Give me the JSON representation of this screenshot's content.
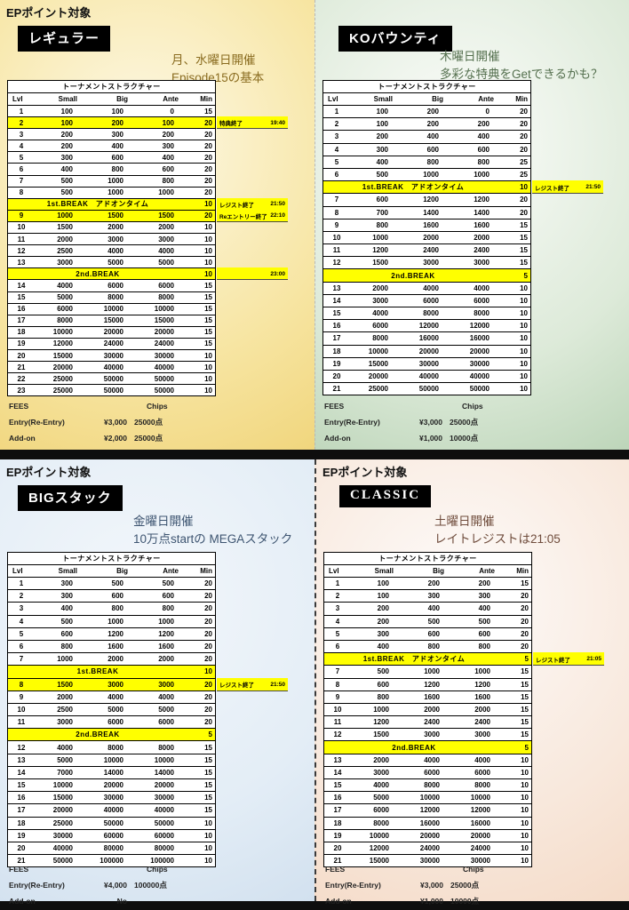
{
  "theme": {
    "highlight": "#ffff00",
    "badge_bg": "#000000",
    "badge_text": "#ffffff",
    "divider": "#0e0e0e"
  },
  "quadrants": [
    {
      "id": "regular",
      "ep_label": "EPポイント対象",
      "badge": "レギュラー",
      "headline1": "月、水曜日開催",
      "headline2": "Episode15の基本",
      "table_title": "トーナメントストラクチャー",
      "columns": [
        "Lvl",
        "Small",
        "Big",
        "Ante",
        "Min"
      ],
      "colors": {
        "bg_inner": "#fdf9e8",
        "bg_mid": "#f7e5a2",
        "bg_outer": "#eccb63",
        "accent": "#8a6c20"
      },
      "rows": [
        {
          "lvl": "1",
          "small": "100",
          "big": "100",
          "ante": "0",
          "min": "15"
        },
        {
          "lvl": "2",
          "small": "100",
          "big": "200",
          "ante": "100",
          "min": "20",
          "hl": true,
          "note": "特典終了",
          "time": "19:40"
        },
        {
          "lvl": "3",
          "small": "200",
          "big": "300",
          "ante": "200",
          "min": "20"
        },
        {
          "lvl": "4",
          "small": "200",
          "big": "400",
          "ante": "300",
          "min": "20"
        },
        {
          "lvl": "5",
          "small": "300",
          "big": "600",
          "ante": "400",
          "min": "20"
        },
        {
          "lvl": "6",
          "small": "400",
          "big": "800",
          "ante": "600",
          "min": "20"
        },
        {
          "lvl": "7",
          "small": "500",
          "big": "1000",
          "ante": "800",
          "min": "20"
        },
        {
          "lvl": "8",
          "small": "500",
          "big": "1000",
          "ante": "1000",
          "min": "20"
        },
        {
          "break": "1st.BREAK　アドオンタイム",
          "min": "10",
          "note": "レジスト終了",
          "time": "21:50"
        },
        {
          "lvl": "9",
          "small": "1000",
          "big": "1500",
          "ante": "1500",
          "min": "20",
          "hl": true,
          "note": "Reエントリー終了",
          "time": "22:10"
        },
        {
          "lvl": "10",
          "small": "1500",
          "big": "2000",
          "ante": "2000",
          "min": "10"
        },
        {
          "lvl": "11",
          "small": "2000",
          "big": "3000",
          "ante": "3000",
          "min": "10"
        },
        {
          "lvl": "12",
          "small": "2500",
          "big": "4000",
          "ante": "4000",
          "min": "10"
        },
        {
          "lvl": "13",
          "small": "3000",
          "big": "5000",
          "ante": "5000",
          "min": "10"
        },
        {
          "break": "2nd.BREAK",
          "min": "10",
          "note": "",
          "time": "23:00"
        },
        {
          "lvl": "14",
          "small": "4000",
          "big": "6000",
          "ante": "6000",
          "min": "15"
        },
        {
          "lvl": "15",
          "small": "5000",
          "big": "8000",
          "ante": "8000",
          "min": "15"
        },
        {
          "lvl": "16",
          "small": "6000",
          "big": "10000",
          "ante": "10000",
          "min": "15"
        },
        {
          "lvl": "17",
          "small": "8000",
          "big": "15000",
          "ante": "15000",
          "min": "15"
        },
        {
          "lvl": "18",
          "small": "10000",
          "big": "20000",
          "ante": "20000",
          "min": "15"
        },
        {
          "lvl": "19",
          "small": "12000",
          "big": "24000",
          "ante": "24000",
          "min": "15"
        },
        {
          "lvl": "20",
          "small": "15000",
          "big": "30000",
          "ante": "30000",
          "min": "10"
        },
        {
          "lvl": "21",
          "small": "20000",
          "big": "40000",
          "ante": "40000",
          "min": "10"
        },
        {
          "lvl": "22",
          "small": "25000",
          "big": "50000",
          "ante": "50000",
          "min": "10"
        },
        {
          "lvl": "23",
          "small": "25000",
          "big": "50000",
          "ante": "50000",
          "min": "10"
        }
      ],
      "fees": {
        "title": "FEES",
        "chips_label": "Chips",
        "entry_label": "Entry(Re-Entry)",
        "entry_fee": "¥3,000",
        "entry_chips": "25000点",
        "addon_label": "Add-on",
        "addon_fee": "¥2,000",
        "addon_chips": "25000点"
      }
    },
    {
      "id": "ko-bounty",
      "badge": "KOバウンティ",
      "headline1": "木曜日開催",
      "headline2": "多彩な特典をGetできるかも？",
      "table_title": "トーナメントストラクチャー",
      "columns": [
        "Lvl",
        "Small",
        "Big",
        "Ante",
        "Min"
      ],
      "colors": {
        "bg_inner": "#fcfdfb",
        "bg_mid": "#ddead9",
        "bg_outer": "#a6c7a3",
        "accent": "#55704f"
      },
      "rows": [
        {
          "lvl": "1",
          "small": "100",
          "big": "200",
          "ante": "0",
          "min": "20"
        },
        {
          "lvl": "2",
          "small": "100",
          "big": "200",
          "ante": "200",
          "min": "20"
        },
        {
          "lvl": "3",
          "small": "200",
          "big": "400",
          "ante": "400",
          "min": "20"
        },
        {
          "lvl": "4",
          "small": "300",
          "big": "600",
          "ante": "600",
          "min": "20"
        },
        {
          "lvl": "5",
          "small": "400",
          "big": "800",
          "ante": "800",
          "min": "25"
        },
        {
          "lvl": "6",
          "small": "500",
          "big": "1000",
          "ante": "1000",
          "min": "25"
        },
        {
          "break": "1st.BREAK　アドオンタイム",
          "min": "10",
          "note": "レジスト終了",
          "time": "21:50"
        },
        {
          "lvl": "7",
          "small": "600",
          "big": "1200",
          "ante": "1200",
          "min": "20"
        },
        {
          "lvl": "8",
          "small": "700",
          "big": "1400",
          "ante": "1400",
          "min": "20"
        },
        {
          "lvl": "9",
          "small": "800",
          "big": "1600",
          "ante": "1600",
          "min": "15"
        },
        {
          "lvl": "10",
          "small": "1000",
          "big": "2000",
          "ante": "2000",
          "min": "15"
        },
        {
          "lvl": "11",
          "small": "1200",
          "big": "2400",
          "ante": "2400",
          "min": "15"
        },
        {
          "lvl": "12",
          "small": "1500",
          "big": "3000",
          "ante": "3000",
          "min": "15"
        },
        {
          "break": "2nd.BREAK",
          "min": "5"
        },
        {
          "lvl": "13",
          "small": "2000",
          "big": "4000",
          "ante": "4000",
          "min": "10"
        },
        {
          "lvl": "14",
          "small": "3000",
          "big": "6000",
          "ante": "6000",
          "min": "10"
        },
        {
          "lvl": "15",
          "small": "4000",
          "big": "8000",
          "ante": "8000",
          "min": "10"
        },
        {
          "lvl": "16",
          "small": "6000",
          "big": "12000",
          "ante": "12000",
          "min": "10"
        },
        {
          "lvl": "17",
          "small": "8000",
          "big": "16000",
          "ante": "16000",
          "min": "10"
        },
        {
          "lvl": "18",
          "small": "10000",
          "big": "20000",
          "ante": "20000",
          "min": "10"
        },
        {
          "lvl": "19",
          "small": "15000",
          "big": "30000",
          "ante": "30000",
          "min": "10"
        },
        {
          "lvl": "20",
          "small": "20000",
          "big": "40000",
          "ante": "40000",
          "min": "10"
        },
        {
          "lvl": "21",
          "small": "25000",
          "big": "50000",
          "ante": "50000",
          "min": "10"
        }
      ],
      "fees": {
        "title": "FEES",
        "chips_label": "Chips",
        "entry_label": "Entry(Re-Entry)",
        "entry_fee": "¥3,000",
        "entry_chips": "25000点",
        "addon_label": "Add-on",
        "addon_fee": "¥1,000",
        "addon_chips": "10000点"
      }
    },
    {
      "id": "big-stack",
      "ep_label": "EPポイント対象",
      "badge": "BIGスタック",
      "headline1": "金曜日開催",
      "headline2": "10万点startの MEGAスタック",
      "table_title": "トーナメントストラクチャー",
      "columns": [
        "Lvl",
        "Small",
        "Big",
        "Ante",
        "Min"
      ],
      "colors": {
        "bg_inner": "#f3f7fb",
        "bg_mid": "#e3edf6",
        "bg_outer": "#c6d8ea",
        "accent": "#3e5571"
      },
      "rows": [
        {
          "lvl": "1",
          "small": "300",
          "big": "500",
          "ante": "500",
          "min": "20"
        },
        {
          "lvl": "2",
          "small": "300",
          "big": "600",
          "ante": "600",
          "min": "20"
        },
        {
          "lvl": "3",
          "small": "400",
          "big": "800",
          "ante": "800",
          "min": "20"
        },
        {
          "lvl": "4",
          "small": "500",
          "big": "1000",
          "ante": "1000",
          "min": "20"
        },
        {
          "lvl": "5",
          "small": "600",
          "big": "1200",
          "ante": "1200",
          "min": "20"
        },
        {
          "lvl": "6",
          "small": "800",
          "big": "1600",
          "ante": "1600",
          "min": "20"
        },
        {
          "lvl": "7",
          "small": "1000",
          "big": "2000",
          "ante": "2000",
          "min": "20"
        },
        {
          "break": "1st.BREAK",
          "min": "10"
        },
        {
          "lvl": "8",
          "small": "1500",
          "big": "3000",
          "ante": "3000",
          "min": "20",
          "hl": true,
          "note": "レジスト終了",
          "time": "21:50"
        },
        {
          "lvl": "9",
          "small": "2000",
          "big": "4000",
          "ante": "4000",
          "min": "20"
        },
        {
          "lvl": "10",
          "small": "2500",
          "big": "5000",
          "ante": "5000",
          "min": "20"
        },
        {
          "lvl": "11",
          "small": "3000",
          "big": "6000",
          "ante": "6000",
          "min": "20"
        },
        {
          "break": "2nd.BREAK",
          "min": "5"
        },
        {
          "lvl": "12",
          "small": "4000",
          "big": "8000",
          "ante": "8000",
          "min": "15"
        },
        {
          "lvl": "13",
          "small": "5000",
          "big": "10000",
          "ante": "10000",
          "min": "15"
        },
        {
          "lvl": "14",
          "small": "7000",
          "big": "14000",
          "ante": "14000",
          "min": "15"
        },
        {
          "lvl": "15",
          "small": "10000",
          "big": "20000",
          "ante": "20000",
          "min": "15"
        },
        {
          "lvl": "16",
          "small": "15000",
          "big": "30000",
          "ante": "30000",
          "min": "15"
        },
        {
          "lvl": "17",
          "small": "20000",
          "big": "40000",
          "ante": "40000",
          "min": "15"
        },
        {
          "lvl": "18",
          "small": "25000",
          "big": "50000",
          "ante": "50000",
          "min": "10"
        },
        {
          "lvl": "19",
          "small": "30000",
          "big": "60000",
          "ante": "60000",
          "min": "10"
        },
        {
          "lvl": "20",
          "small": "40000",
          "big": "80000",
          "ante": "80000",
          "min": "10"
        },
        {
          "lvl": "21",
          "small": "50000",
          "big": "100000",
          "ante": "100000",
          "min": "10"
        }
      ],
      "fees": {
        "title": "FEES",
        "chips_label": "Chips",
        "entry_label": "Entry(Re-Entry)",
        "entry_fee": "¥4,000",
        "entry_chips": "100000点",
        "addon_label": "Add-on",
        "addon_fee": "No",
        "addon_chips": ""
      }
    },
    {
      "id": "classic",
      "ep_label": "EPポイント対象",
      "badge": "CLASSIC",
      "headline1": "土曜日開催",
      "headline2": "レイトレジストは21:05",
      "table_title": "トーナメントストラクチャー",
      "columns": [
        "Lvl",
        "Small",
        "Big",
        "Ante",
        "Min"
      ],
      "colors": {
        "bg_inner": "#fdfbfa",
        "bg_mid": "#f8e8dc",
        "bg_outer": "#f2d2ba",
        "accent": "#6f4c3c"
      },
      "rows": [
        {
          "lvl": "1",
          "small": "100",
          "big": "200",
          "ante": "200",
          "min": "15"
        },
        {
          "lvl": "2",
          "small": "100",
          "big": "300",
          "ante": "300",
          "min": "20"
        },
        {
          "lvl": "3",
          "small": "200",
          "big": "400",
          "ante": "400",
          "min": "20"
        },
        {
          "lvl": "4",
          "small": "200",
          "big": "500",
          "ante": "500",
          "min": "20"
        },
        {
          "lvl": "5",
          "small": "300",
          "big": "600",
          "ante": "600",
          "min": "20"
        },
        {
          "lvl": "6",
          "small": "400",
          "big": "800",
          "ante": "800",
          "min": "20"
        },
        {
          "break": "1st.BREAK　アドオンタイム",
          "min": "5",
          "note": "レジスト終了",
          "time": "21:05"
        },
        {
          "lvl": "7",
          "small": "500",
          "big": "1000",
          "ante": "1000",
          "min": "15"
        },
        {
          "lvl": "8",
          "small": "600",
          "big": "1200",
          "ante": "1200",
          "min": "15"
        },
        {
          "lvl": "9",
          "small": "800",
          "big": "1600",
          "ante": "1600",
          "min": "15"
        },
        {
          "lvl": "10",
          "small": "1000",
          "big": "2000",
          "ante": "2000",
          "min": "15"
        },
        {
          "lvl": "11",
          "small": "1200",
          "big": "2400",
          "ante": "2400",
          "min": "15"
        },
        {
          "lvl": "12",
          "small": "1500",
          "big": "3000",
          "ante": "3000",
          "min": "15"
        },
        {
          "break": "2nd.BREAK",
          "min": "5"
        },
        {
          "lvl": "13",
          "small": "2000",
          "big": "4000",
          "ante": "4000",
          "min": "10"
        },
        {
          "lvl": "14",
          "small": "3000",
          "big": "6000",
          "ante": "6000",
          "min": "10"
        },
        {
          "lvl": "15",
          "small": "4000",
          "big": "8000",
          "ante": "8000",
          "min": "10"
        },
        {
          "lvl": "16",
          "small": "5000",
          "big": "10000",
          "ante": "10000",
          "min": "10"
        },
        {
          "lvl": "17",
          "small": "6000",
          "big": "12000",
          "ante": "12000",
          "min": "10"
        },
        {
          "lvl": "18",
          "small": "8000",
          "big": "16000",
          "ante": "16000",
          "min": "10"
        },
        {
          "lvl": "19",
          "small": "10000",
          "big": "20000",
          "ante": "20000",
          "min": "10"
        },
        {
          "lvl": "20",
          "small": "12000",
          "big": "24000",
          "ante": "24000",
          "min": "10"
        },
        {
          "lvl": "21",
          "small": "15000",
          "big": "30000",
          "ante": "30000",
          "min": "10"
        }
      ],
      "fees": {
        "title": "FEES",
        "chips_label": "Chips",
        "entry_label": "Entry(Re-Entry)",
        "entry_fee": "¥3,000",
        "entry_chips": "25000点",
        "addon_label": "Add-on",
        "addon_fee": "¥1,000",
        "addon_chips": "10000点"
      }
    }
  ]
}
